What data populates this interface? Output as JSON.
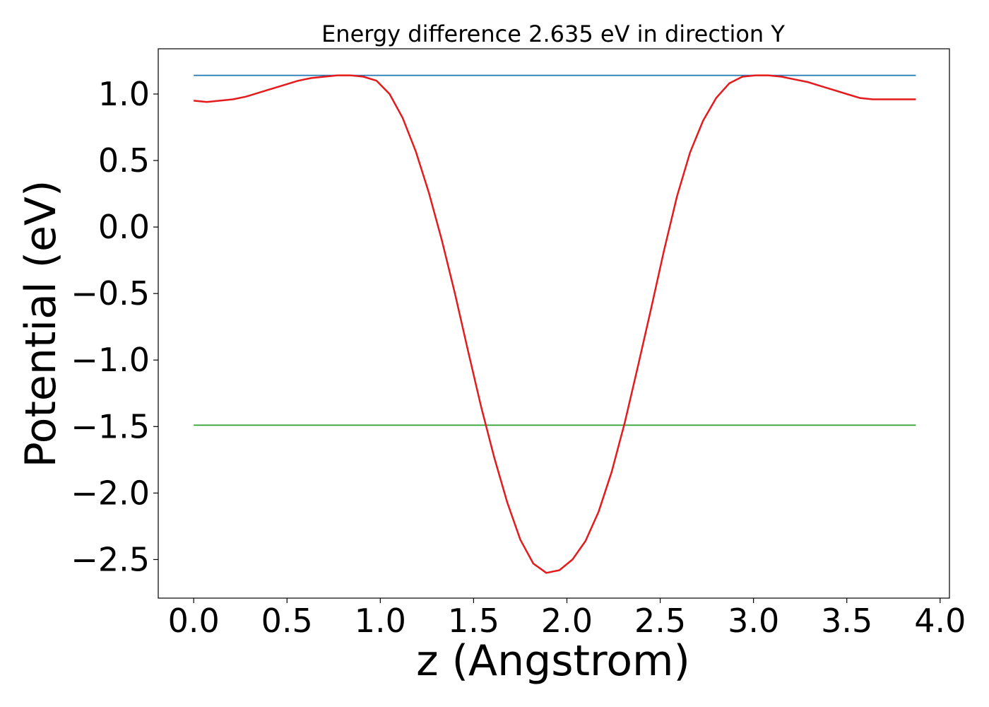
{
  "chart_data": {
    "type": "line",
    "title": "Energy difference 2.635 eV in direction Y",
    "xlabel": "z (Angstrom)",
    "ylabel": "Potential (eV)",
    "xlim": [
      -0.19,
      4.05
    ],
    "ylim": [
      -2.79,
      1.34
    ],
    "xticks": [
      0.0,
      0.5,
      1.0,
      1.5,
      2.0,
      2.5,
      3.0,
      3.5,
      4.0
    ],
    "xtick_labels": [
      "0.0",
      "0.5",
      "1.0",
      "1.5",
      "2.0",
      "2.5",
      "3.0",
      "3.5",
      "4.0"
    ],
    "yticks": [
      -2.5,
      -2.0,
      -1.5,
      -1.0,
      -0.5,
      0.0,
      0.5,
      1.0
    ],
    "ytick_labels": [
      "−2.5",
      "−2.0",
      "−1.5",
      "−1.0",
      "−0.5",
      "0.0",
      "0.5",
      "1.0"
    ],
    "grid": false,
    "series": [
      {
        "color": "#1f77b4",
        "x": [
          0.0,
          3.87
        ],
        "y": [
          1.14,
          1.14
        ]
      },
      {
        "color": "#2ca02c",
        "x": [
          0.0,
          3.87
        ],
        "y": [
          -1.49,
          -1.49
        ]
      },
      {
        "color": "#e41a1c",
        "x": [
          0.0,
          0.07,
          0.14,
          0.21,
          0.28,
          0.35,
          0.42,
          0.49,
          0.56,
          0.63,
          0.7,
          0.77,
          0.84,
          0.91,
          0.98,
          1.05,
          1.12,
          1.19,
          1.26,
          1.33,
          1.4,
          1.47,
          1.54,
          1.61,
          1.68,
          1.75,
          1.82,
          1.89,
          1.96,
          2.03,
          2.1,
          2.17,
          2.24,
          2.31,
          2.38,
          2.45,
          2.52,
          2.59,
          2.66,
          2.73,
          2.8,
          2.87,
          2.94,
          3.01,
          3.08,
          3.15,
          3.22,
          3.29,
          3.36,
          3.43,
          3.5,
          3.57,
          3.64,
          3.71,
          3.78,
          3.87
        ],
        "y": [
          0.95,
          0.94,
          0.95,
          0.96,
          0.98,
          1.01,
          1.04,
          1.07,
          1.1,
          1.12,
          1.13,
          1.14,
          1.14,
          1.13,
          1.1,
          1.0,
          0.82,
          0.57,
          0.26,
          -0.1,
          -0.5,
          -0.93,
          -1.35,
          -1.73,
          -2.07,
          -2.35,
          -2.53,
          -2.6,
          -2.58,
          -2.5,
          -2.36,
          -2.14,
          -1.84,
          -1.47,
          -1.05,
          -0.62,
          -0.18,
          0.23,
          0.56,
          0.8,
          0.97,
          1.08,
          1.13,
          1.14,
          1.14,
          1.13,
          1.11,
          1.09,
          1.06,
          1.03,
          1.0,
          0.97,
          0.96,
          0.96,
          0.96,
          0.96
        ]
      }
    ]
  }
}
